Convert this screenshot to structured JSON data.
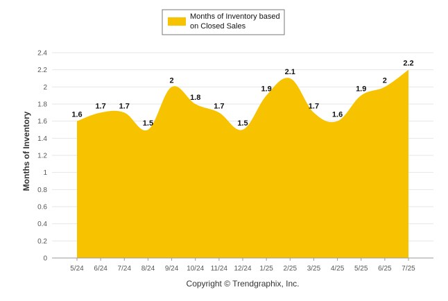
{
  "chart_data": {
    "type": "area",
    "categories": [
      "5/24",
      "6/24",
      "7/24",
      "8/24",
      "9/24",
      "10/24",
      "11/24",
      "12/24",
      "1/25",
      "2/25",
      "3/25",
      "4/25",
      "5/25",
      "6/25",
      "7/25"
    ],
    "series": [
      {
        "name": "Months of Inventory based on Closed Sales",
        "values": [
          1.6,
          1.7,
          1.7,
          1.5,
          2,
          1.8,
          1.7,
          1.5,
          1.9,
          2.1,
          1.7,
          1.6,
          1.9,
          2,
          2.2
        ]
      }
    ],
    "ylabel": "Months of Inventory",
    "ylim": [
      0,
      2.4
    ],
    "yticks": [
      0,
      0.2,
      0.4,
      0.6,
      0.8,
      1,
      1.2,
      1.4,
      1.6,
      1.8,
      2,
      2.2,
      2.4
    ],
    "grid": true,
    "legend": {
      "placement": "top-center",
      "lines": [
        "Months of Inventory based",
        "on Closed Sales"
      ]
    },
    "credit": "Copyright © Trendgraphix, Inc.",
    "colors": {
      "fill": "#F7C200",
      "grid": "#e6e6e6"
    }
  }
}
